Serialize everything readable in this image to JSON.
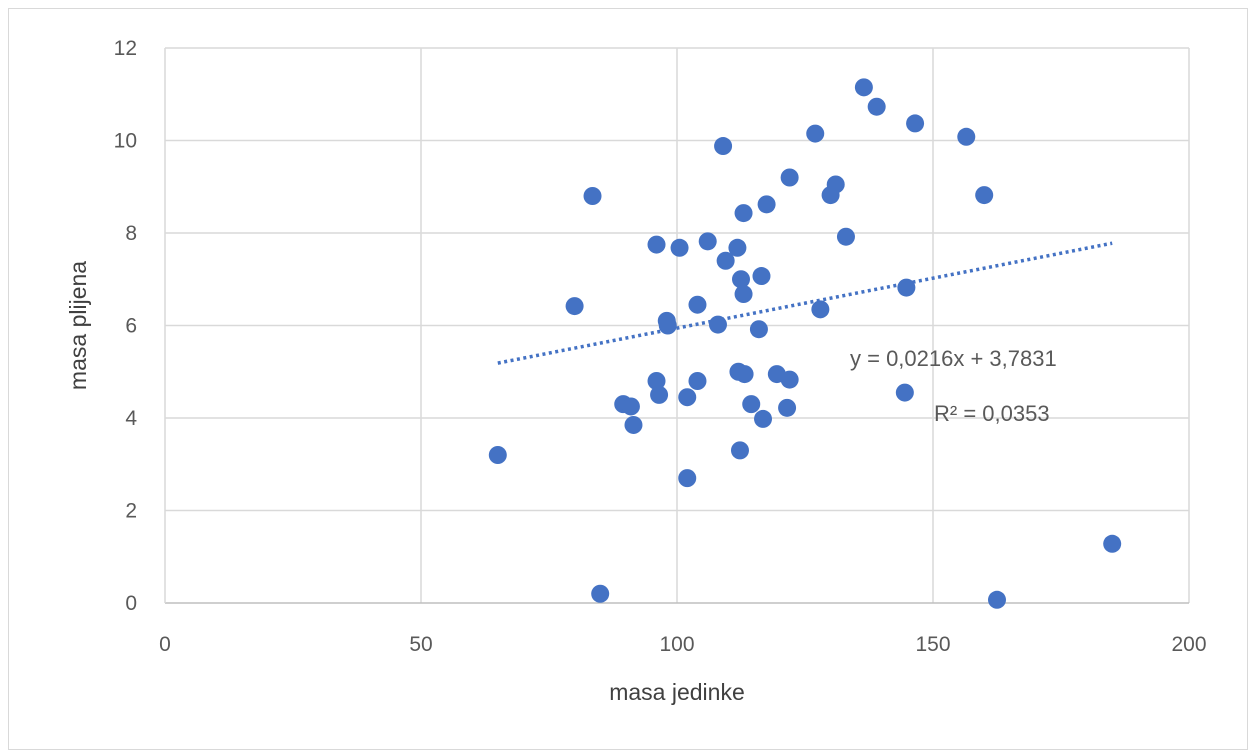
{
  "chart_data": {
    "type": "scatter",
    "xlabel": "masa jedinke",
    "ylabel": "masa plijena",
    "xlim": [
      0,
      200
    ],
    "ylim": [
      0,
      12
    ],
    "x_ticks": [
      "0",
      "50",
      "100",
      "150",
      "200"
    ],
    "y_ticks": [
      "0",
      "2",
      "4",
      "6",
      "8",
      "10",
      "12"
    ],
    "grid": true,
    "legend": "none",
    "series": [
      {
        "color": "#4472c4",
        "points": [
          [
            65,
            3.2
          ],
          [
            80,
            6.42
          ],
          [
            83.5,
            8.8
          ],
          [
            85,
            0.2
          ],
          [
            89.5,
            4.3
          ],
          [
            91,
            4.25
          ],
          [
            91.5,
            3.85
          ],
          [
            96,
            7.75
          ],
          [
            96,
            4.8
          ],
          [
            96.5,
            4.5
          ],
          [
            98,
            6.1
          ],
          [
            98.2,
            6.0
          ],
          [
            100.5,
            7.68
          ],
          [
            102,
            2.7
          ],
          [
            102,
            4.45
          ],
          [
            104,
            6.45
          ],
          [
            104,
            4.8
          ],
          [
            106,
            7.82
          ],
          [
            108,
            6.02
          ],
          [
            109,
            9.88
          ],
          [
            109.5,
            7.4
          ],
          [
            111.8,
            7.68
          ],
          [
            112,
            5.0
          ],
          [
            112.5,
            7.0
          ],
          [
            112.3,
            3.3
          ],
          [
            113,
            8.43
          ],
          [
            113,
            6.68
          ],
          [
            113.2,
            4.95
          ],
          [
            114.5,
            4.3
          ],
          [
            116,
            5.92
          ],
          [
            116.5,
            7.07
          ],
          [
            116.8,
            3.98
          ],
          [
            117.5,
            8.62
          ],
          [
            119.5,
            4.95
          ],
          [
            121.5,
            4.22
          ],
          [
            122,
            9.2
          ],
          [
            122,
            4.83
          ],
          [
            127,
            10.15
          ],
          [
            128,
            6.35
          ],
          [
            130,
            8.82
          ],
          [
            131,
            9.05
          ],
          [
            133,
            7.92
          ],
          [
            136.5,
            11.15
          ],
          [
            139,
            10.73
          ],
          [
            144.5,
            4.55
          ],
          [
            144.8,
            6.82
          ],
          [
            146.5,
            10.37
          ],
          [
            156.5,
            10.08
          ],
          [
            160,
            8.82
          ],
          [
            162.5,
            0.07
          ],
          [
            185,
            1.28
          ]
        ]
      }
    ],
    "trendline": {
      "type": "linear",
      "slope": 0.0216,
      "intercept": 3.7831,
      "x_range": [
        65,
        185
      ],
      "color": "#4472c4",
      "style": "dotted"
    },
    "annotations": {
      "equation": "y = 0,0216x + 3,7831",
      "r_squared": "R² = 0,0353"
    }
  }
}
